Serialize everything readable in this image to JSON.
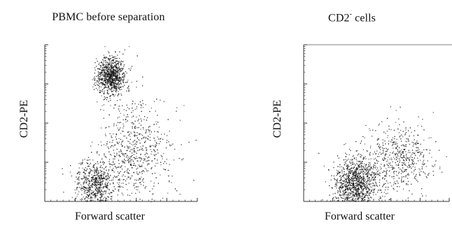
{
  "chart_data": [
    {
      "type": "scatter",
      "title": "PBMC before separation",
      "title_sup": "",
      "xlabel": "Forward scatter",
      "ylabel": "CD2-PE",
      "xlim": [
        0,
        1000
      ],
      "ylim": [
        0,
        1000
      ],
      "y_scale": "log",
      "grid": false,
      "legend": "none",
      "point_color": "#111111",
      "series": [
        {
          "name": "",
          "clusters": [
            {
              "cx": 430,
              "cy": 800,
              "sx": 45,
              "sy": 60,
              "n": 900
            },
            {
              "cx": 330,
              "cy": 110,
              "sx": 60,
              "sy": 75,
              "n": 600
            },
            {
              "cx": 600,
              "cy": 360,
              "sx": 120,
              "sy": 150,
              "n": 520
            },
            {
              "cx": 500,
              "cy": 200,
              "sx": 130,
              "sy": 110,
              "n": 180
            }
          ]
        }
      ]
    },
    {
      "type": "scatter",
      "title": "CD2",
      "title_sup": "-",
      "title_suffix": " cells",
      "xlabel": "Forward scatter",
      "ylabel": "CD2-PE",
      "xlim": [
        0,
        1000
      ],
      "ylim": [
        0,
        1000
      ],
      "y_scale": "log",
      "grid": false,
      "legend": "none",
      "point_color": "#111111",
      "series": [
        {
          "name": "",
          "clusters": [
            {
              "cx": 360,
              "cy": 110,
              "sx": 75,
              "sy": 85,
              "n": 1100
            },
            {
              "cx": 680,
              "cy": 290,
              "sx": 110,
              "sy": 110,
              "n": 420
            },
            {
              "cx": 520,
              "cy": 190,
              "sx": 140,
              "sy": 100,
              "n": 180
            }
          ]
        }
      ]
    }
  ]
}
